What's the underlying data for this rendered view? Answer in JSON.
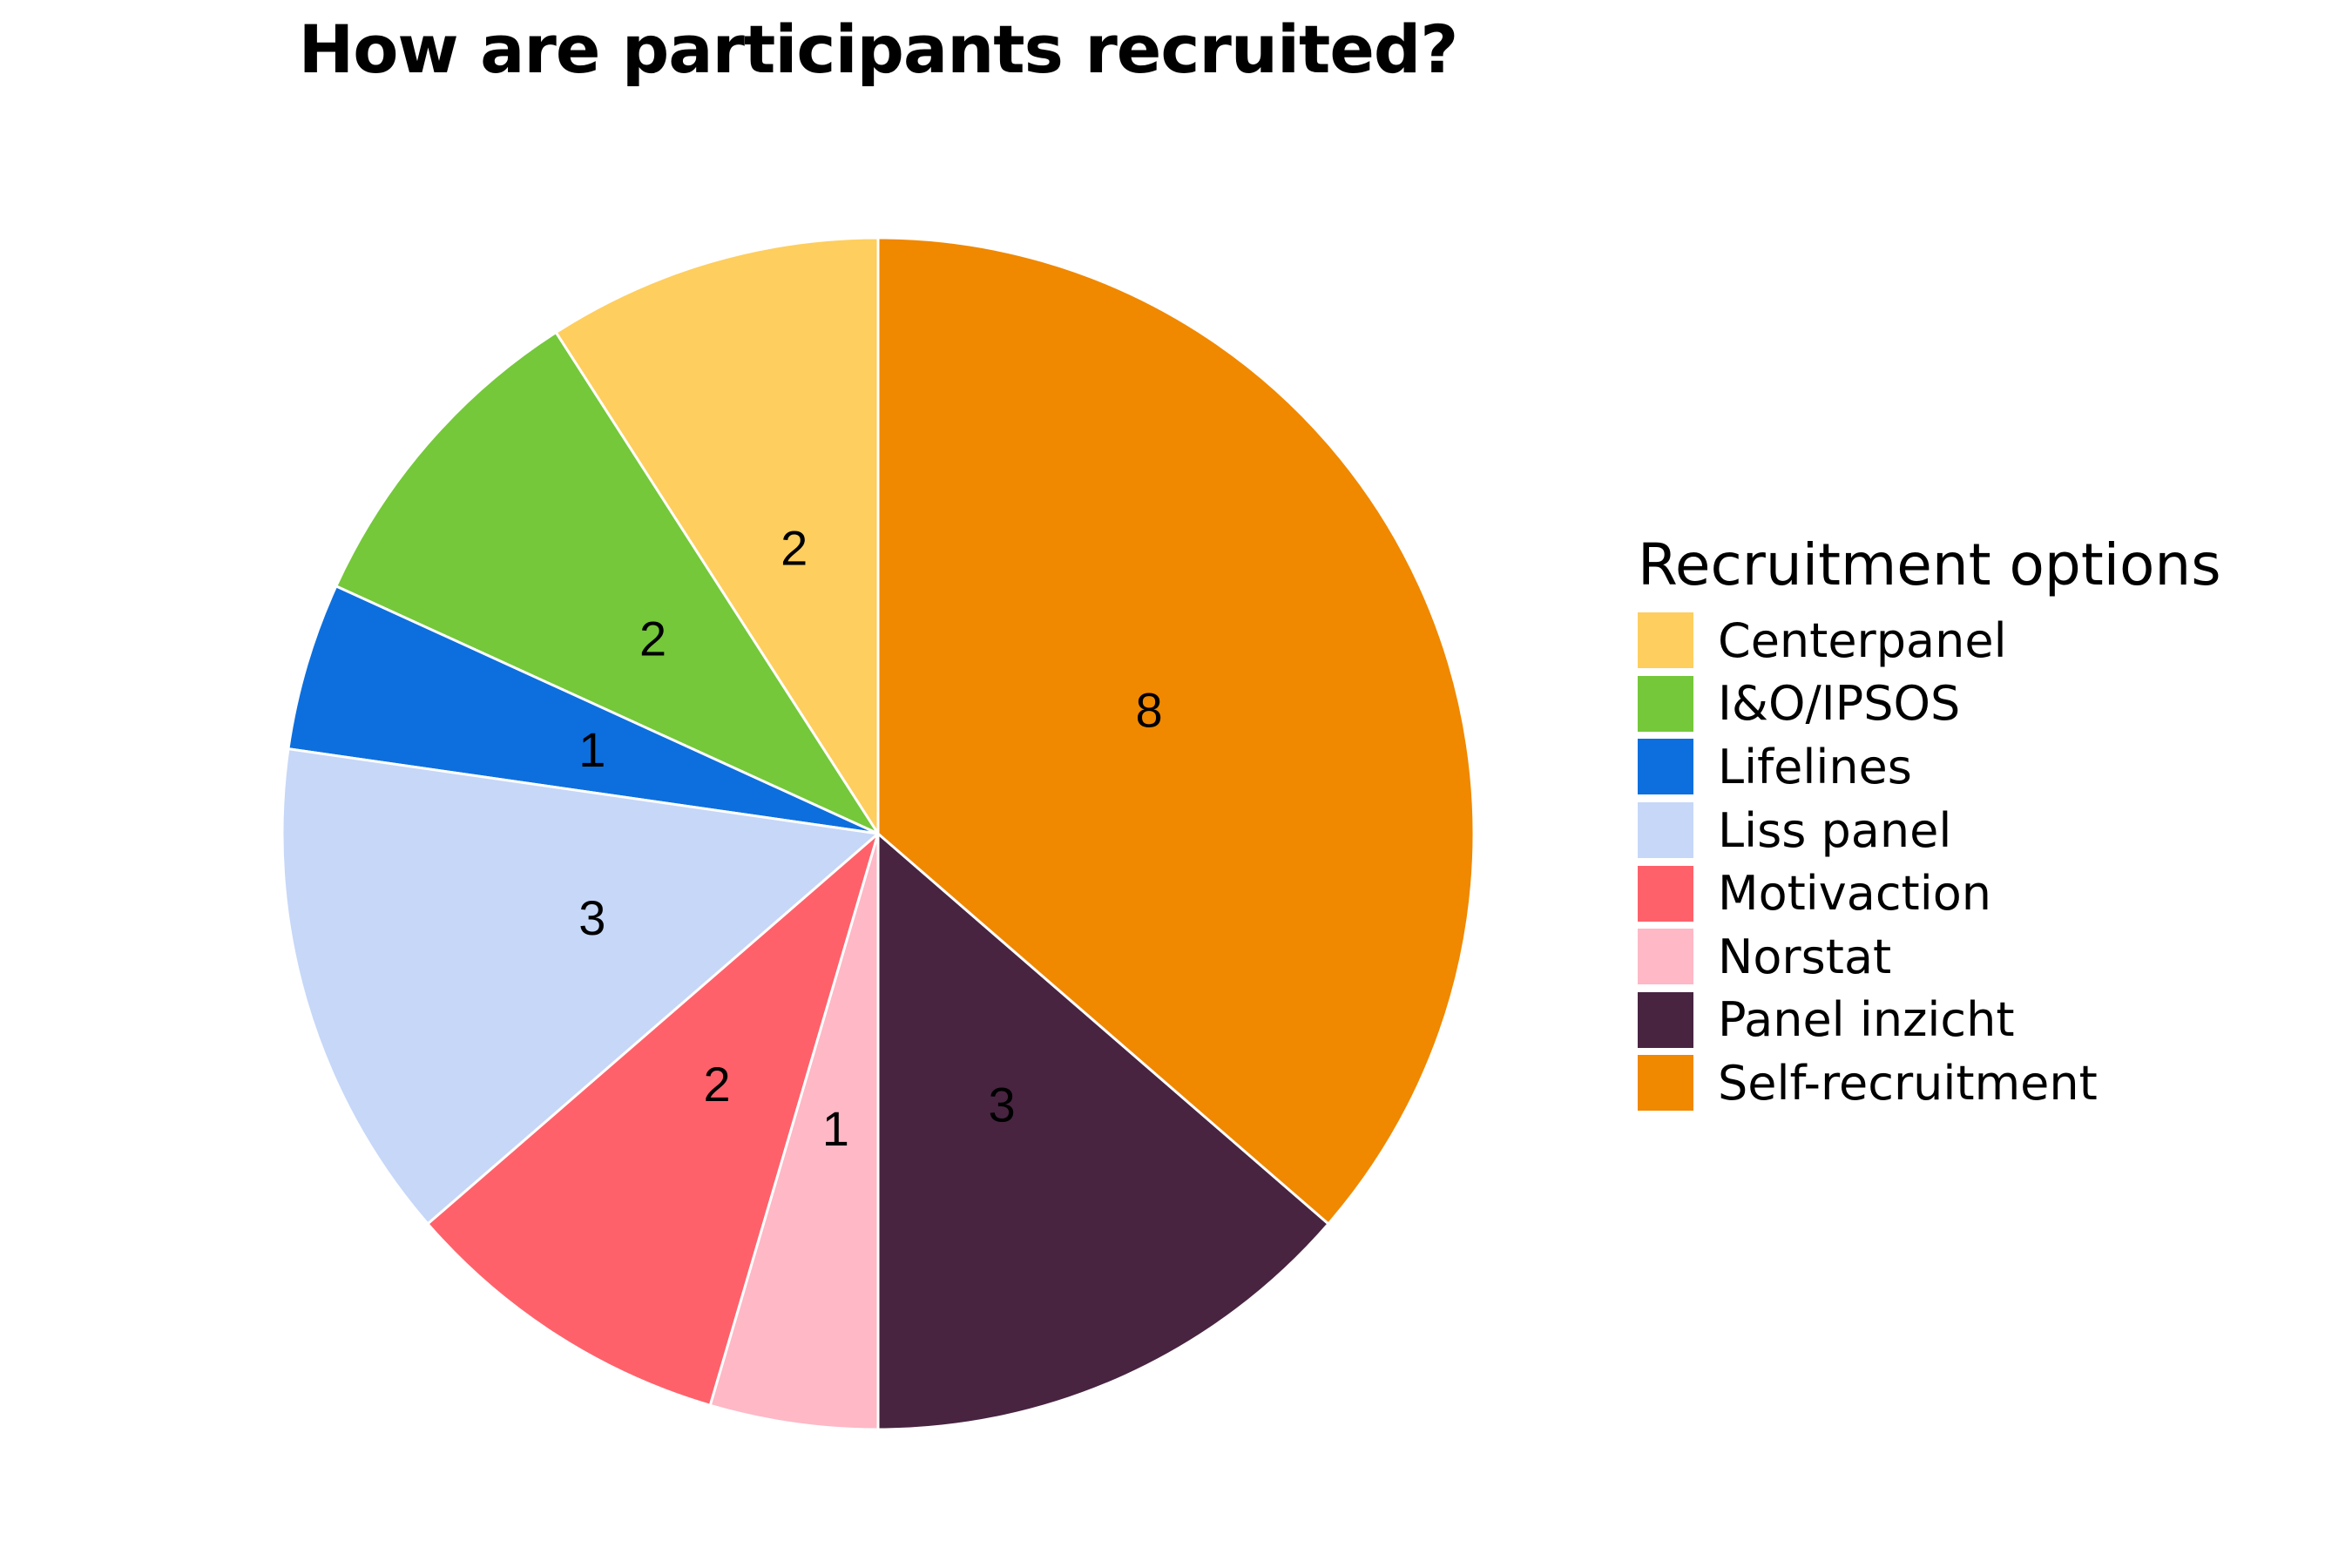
{
  "chart_data": {
    "type": "pie",
    "title": "How are participants recruited?",
    "legend_title": "Recruitment options",
    "legend_position": "right",
    "start": "top, counterclockwise in legend order",
    "slices": [
      {
        "label": "Centerpanel",
        "value": 2,
        "color": "#FECE5E"
      },
      {
        "label": "I&O/IPSOS",
        "value": 2,
        "color": "#74C839"
      },
      {
        "label": "Lifelines",
        "value": 1,
        "color": "#0D6FDD"
      },
      {
        "label": "Liss panel",
        "value": 3,
        "color": "#C6D7F8"
      },
      {
        "label": "Motivaction",
        "value": 2,
        "color": "#FF616B"
      },
      {
        "label": "Norstat",
        "value": 1,
        "color": "#FEB8C6"
      },
      {
        "label": "Panel inzicht",
        "value": 3,
        "color": "#482441"
      },
      {
        "label": "Self-recruitment",
        "value": 8,
        "color": "#F08800"
      }
    ]
  }
}
